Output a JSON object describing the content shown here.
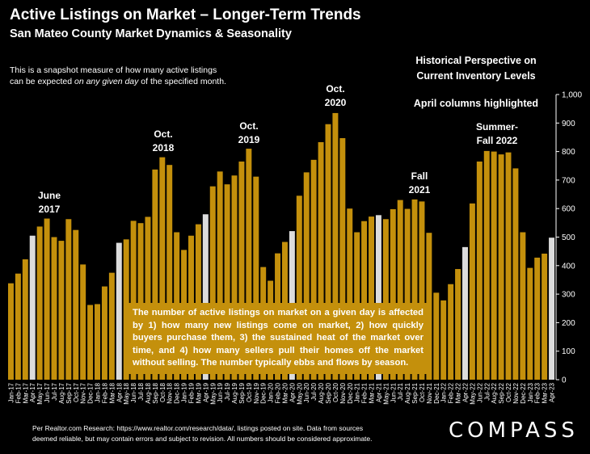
{
  "header": {
    "title": "Active Listings on Market – Longer-Term Trends",
    "subtitle": "San Mateo County Market Dynamics & Seasonality"
  },
  "note": {
    "line1": "This is a snapshot measure of how many active listings",
    "line2_prefix": "can be expected ",
    "line2_emphasis": "on any given day",
    "line2_suffix": " of the specified month."
  },
  "side_note": {
    "line1": "Historical Perspective on",
    "line2": "Current Inventory Levels",
    "april": "April columns highlighted"
  },
  "annotations": [
    {
      "label_1": "June",
      "label_2": "2017"
    },
    {
      "label_1": "Oct.",
      "label_2": "2018"
    },
    {
      "label_1": "Oct.",
      "label_2": "2019"
    },
    {
      "label_1": "Oct.",
      "label_2": "2020"
    },
    {
      "label_1": "Fall",
      "label_2": "2021"
    },
    {
      "label_1": "Summer-",
      "label_2": "Fall 2022"
    }
  ],
  "callout": "The number of active listings on market on a given day is affected by 1) how many new listings come on market, 2) how quickly buyers purchase them, 3) the sustained heat of the market over time, and 4) how many sellers pull their homes off the market without selling. The number typically ebbs and flows by season.",
  "footer": {
    "line1": "Per Realtor.com Research:  https://www.realtor.com/research/data/, listings posted on site. Data from sources",
    "line2": "deemed reliable, but may contain errors and subject to revision. All numbers should be considered approximate."
  },
  "logo": "COMPASS",
  "colors": {
    "bar": "#C4900C",
    "highlight": "#DCDCDC",
    "background": "#000000",
    "text": "#FFFFFF"
  },
  "chart_data": {
    "type": "bar",
    "highlighted": "April columns",
    "ylim": [
      0,
      1000
    ],
    "yticks": [
      "0",
      "100",
      "200",
      "300",
      "400",
      "500",
      "600",
      "700",
      "800",
      "900",
      "1,000"
    ],
    "categories": [
      "Jan-17",
      "Feb-17",
      "Mar-17",
      "Apr-17",
      "May-17",
      "Jun-17",
      "Jul-17",
      "Aug-17",
      "Sep-17",
      "Oct-17",
      "Nov-17",
      "Dec-17",
      "Jan-18",
      "Feb-18",
      "Mar-18",
      "Apr-18",
      "May-18",
      "Jun-18",
      "Jul-18",
      "Aug-18",
      "Sep-18",
      "Oct-18",
      "Nov-18",
      "Dec-18",
      "Jan-19",
      "Feb-19",
      "Mar-19",
      "Apr-19",
      "May-19",
      "Jun-19",
      "Jul-19",
      "Aug-19",
      "Sep-19",
      "Oct-19",
      "Nov-19",
      "Dec-19",
      "Jan-20",
      "Feb-20",
      "Mar-20",
      "Apr-20",
      "May-20",
      "Jun-20",
      "Jul-20",
      "Aug-20",
      "Sep-20",
      "Oct-20",
      "Nov-20",
      "Dec-20",
      "Jan-21",
      "Feb-21",
      "Mar-21",
      "Apr-21",
      "May-21",
      "Jun-21",
      "Jul-21",
      "Aug-21",
      "Sep-21",
      "Oct-21",
      "Nov-21",
      "Dec-21",
      "Jan-22",
      "Feb-22",
      "Mar-22",
      "Apr-22",
      "May-22",
      "Jun-22",
      "Jul-22",
      "Aug-22",
      "Sep-22",
      "Oct-22",
      "Nov-22",
      "Dec-22",
      "Jan-23",
      "Feb-23",
      "Mar-23",
      "Apr-23"
    ],
    "values": [
      338,
      372,
      422,
      505,
      537,
      565,
      500,
      487,
      563,
      525,
      404,
      262,
      265,
      327,
      375,
      480,
      492,
      557,
      549,
      571,
      737,
      780,
      753,
      517,
      455,
      505,
      545,
      580,
      678,
      730,
      685,
      716,
      765,
      810,
      712,
      395,
      347,
      443,
      483,
      521,
      645,
      727,
      771,
      833,
      896,
      935,
      847,
      600,
      517,
      556,
      572,
      577,
      563,
      598,
      630,
      599,
      632,
      625,
      515,
      305,
      278,
      335,
      388,
      465,
      618,
      765,
      802,
      800,
      790,
      797,
      741,
      517,
      392,
      428,
      442,
      498
    ]
  }
}
